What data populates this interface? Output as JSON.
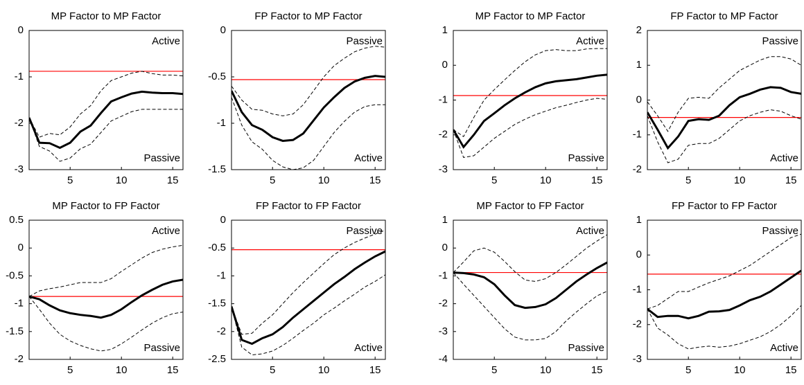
{
  "chart_data": [
    {
      "type": "line",
      "title": "MP Factor to MP Factor",
      "x": [
        1,
        2,
        3,
        4,
        5,
        6,
        7,
        8,
        9,
        10,
        11,
        12,
        13,
        14,
        15,
        16
      ],
      "xlim": [
        1,
        16
      ],
      "xticks": [
        5,
        10,
        15
      ],
      "ylim": [
        -3,
        0
      ],
      "yticks": [
        0,
        -1,
        -2,
        -3
      ],
      "series": [
        {
          "color": "#000000",
          "dashed": false,
          "values": [
            -1.88,
            -2.42,
            -2.43,
            -2.53,
            -2.42,
            -2.18,
            -2.05,
            -1.78,
            -1.53,
            -1.44,
            -1.36,
            -1.32,
            -1.34,
            -1.35,
            -1.35,
            -1.37
          ]
        },
        {
          "color": "#000000",
          "dashed": true,
          "values": [
            -1.88,
            -2.3,
            -2.22,
            -2.25,
            -2.08,
            -1.8,
            -1.62,
            -1.3,
            -1.08,
            -1.0,
            -0.92,
            -0.88,
            -0.93,
            -0.96,
            -0.96,
            -0.98
          ]
        },
        {
          "color": "#000000",
          "dashed": true,
          "values": [
            -1.88,
            -2.5,
            -2.6,
            -2.82,
            -2.75,
            -2.55,
            -2.45,
            -2.2,
            -1.95,
            -1.85,
            -1.75,
            -1.7,
            -1.7,
            -1.7,
            -1.7,
            -1.7
          ]
        }
      ],
      "hline": {
        "value": -0.88,
        "color": "#ff0000"
      },
      "annotations": [
        {
          "text": "Active",
          "position": "top-right"
        },
        {
          "text": "Passive",
          "position": "bottom-right"
        }
      ]
    },
    {
      "type": "line",
      "title": "FP Factor to MP Factor",
      "x": [
        1,
        2,
        3,
        4,
        5,
        6,
        7,
        8,
        9,
        10,
        11,
        12,
        13,
        14,
        15,
        16
      ],
      "xlim": [
        1,
        16
      ],
      "xticks": [
        5,
        10,
        15
      ],
      "ylim": [
        -1.5,
        0
      ],
      "yticks": [
        0,
        -0.5,
        -1,
        -1.5
      ],
      "series": [
        {
          "color": "#000000",
          "dashed": false,
          "values": [
            -0.65,
            -0.88,
            -1.02,
            -1.07,
            -1.15,
            -1.19,
            -1.18,
            -1.11,
            -0.97,
            -0.83,
            -0.72,
            -0.62,
            -0.55,
            -0.51,
            -0.49,
            -0.5
          ]
        },
        {
          "color": "#000000",
          "dashed": true,
          "values": [
            -0.6,
            -0.75,
            -0.85,
            -0.86,
            -0.9,
            -0.92,
            -0.9,
            -0.8,
            -0.65,
            -0.5,
            -0.38,
            -0.3,
            -0.23,
            -0.19,
            -0.17,
            -0.18
          ]
        },
        {
          "color": "#000000",
          "dashed": true,
          "values": [
            -0.72,
            -1.02,
            -1.2,
            -1.28,
            -1.4,
            -1.47,
            -1.5,
            -1.48,
            -1.4,
            -1.25,
            -1.1,
            -0.98,
            -0.88,
            -0.82,
            -0.8,
            -0.8
          ]
        }
      ],
      "hline": {
        "value": -0.53,
        "color": "#ff0000"
      },
      "annotations": [
        {
          "text": "Passive",
          "position": "top-right"
        },
        {
          "text": "Active",
          "position": "bottom-right"
        }
      ]
    },
    {
      "type": "line",
      "title": "MP Factor to MP Factor",
      "x": [
        1,
        2,
        3,
        4,
        5,
        6,
        7,
        8,
        9,
        10,
        11,
        12,
        13,
        14,
        15,
        16
      ],
      "xlim": [
        1,
        16
      ],
      "xticks": [
        5,
        10,
        15
      ],
      "ylim": [
        -3,
        1
      ],
      "yticks": [
        1,
        0,
        -1,
        -2,
        -3
      ],
      "series": [
        {
          "color": "#000000",
          "dashed": false,
          "values": [
            -1.85,
            -2.35,
            -2.0,
            -1.6,
            -1.38,
            -1.15,
            -0.95,
            -0.78,
            -0.63,
            -0.52,
            -0.46,
            -0.43,
            -0.4,
            -0.35,
            -0.3,
            -0.27
          ]
        },
        {
          "color": "#000000",
          "dashed": true,
          "values": [
            -1.85,
            -2.05,
            -1.5,
            -1.0,
            -0.7,
            -0.42,
            -0.15,
            0.1,
            0.3,
            0.42,
            0.45,
            0.42,
            0.42,
            0.47,
            0.48,
            0.48
          ]
        },
        {
          "color": "#000000",
          "dashed": true,
          "values": [
            -1.85,
            -2.65,
            -2.6,
            -2.35,
            -2.1,
            -1.9,
            -1.7,
            -1.55,
            -1.42,
            -1.32,
            -1.22,
            -1.15,
            -1.07,
            -1.0,
            -0.95,
            -0.98
          ]
        }
      ],
      "hline": {
        "value": -0.87,
        "color": "#ff0000"
      },
      "annotations": [
        {
          "text": "Active",
          "position": "top-right"
        },
        {
          "text": "Passive",
          "position": "bottom-right"
        }
      ]
    },
    {
      "type": "line",
      "title": "FP Factor to MP Factor",
      "x": [
        1,
        2,
        3,
        4,
        5,
        6,
        7,
        8,
        9,
        10,
        11,
        12,
        13,
        14,
        15,
        16
      ],
      "xlim": [
        1,
        16
      ],
      "xticks": [
        5,
        10,
        15
      ],
      "ylim": [
        -2,
        2
      ],
      "yticks": [
        2,
        1,
        0,
        -1,
        -2
      ],
      "series": [
        {
          "color": "#000000",
          "dashed": false,
          "values": [
            -0.35,
            -0.85,
            -1.38,
            -1.05,
            -0.6,
            -0.55,
            -0.57,
            -0.45,
            -0.15,
            0.08,
            0.18,
            0.3,
            0.37,
            0.35,
            0.23,
            0.18
          ]
        },
        {
          "color": "#000000",
          "dashed": true,
          "values": [
            -0.05,
            -0.45,
            -0.9,
            -0.35,
            0.05,
            0.08,
            0.05,
            0.35,
            0.6,
            0.85,
            1.0,
            1.15,
            1.25,
            1.25,
            1.18,
            1.0
          ]
        },
        {
          "color": "#000000",
          "dashed": true,
          "values": [
            -0.45,
            -1.2,
            -1.8,
            -1.7,
            -1.3,
            -1.25,
            -1.25,
            -1.1,
            -0.85,
            -0.6,
            -0.45,
            -0.35,
            -0.28,
            -0.32,
            -0.45,
            -0.55
          ]
        }
      ],
      "hline": {
        "value": -0.5,
        "color": "#ff0000"
      },
      "annotations": [
        {
          "text": "Passive",
          "position": "top-right"
        },
        {
          "text": "Active",
          "position": "bottom-right"
        }
      ]
    },
    {
      "type": "line",
      "title": "MP Factor to FP Factor",
      "x": [
        1,
        2,
        3,
        4,
        5,
        6,
        7,
        8,
        9,
        10,
        11,
        12,
        13,
        14,
        15,
        16
      ],
      "xlim": [
        1,
        16
      ],
      "xticks": [
        5,
        10,
        15
      ],
      "ylim": [
        -2,
        0.5
      ],
      "yticks": [
        0.5,
        0,
        -0.5,
        -1,
        -1.5,
        -2
      ],
      "series": [
        {
          "color": "#000000",
          "dashed": false,
          "values": [
            -0.87,
            -0.92,
            -1.03,
            -1.12,
            -1.17,
            -1.2,
            -1.22,
            -1.25,
            -1.2,
            -1.1,
            -0.97,
            -0.85,
            -0.75,
            -0.66,
            -0.6,
            -0.57
          ]
        },
        {
          "color": "#000000",
          "dashed": true,
          "values": [
            -0.87,
            -0.77,
            -0.73,
            -0.7,
            -0.66,
            -0.62,
            -0.62,
            -0.62,
            -0.55,
            -0.42,
            -0.3,
            -0.18,
            -0.08,
            -0.02,
            0.02,
            0.05
          ]
        },
        {
          "color": "#000000",
          "dashed": true,
          "values": [
            -0.87,
            -1.1,
            -1.35,
            -1.55,
            -1.67,
            -1.75,
            -1.81,
            -1.85,
            -1.82,
            -1.72,
            -1.6,
            -1.47,
            -1.35,
            -1.25,
            -1.18,
            -1.15
          ]
        }
      ],
      "hline": {
        "value": -0.87,
        "color": "#ff0000"
      },
      "annotations": [
        {
          "text": "Active",
          "position": "top-right"
        },
        {
          "text": "Passive",
          "position": "bottom-right"
        }
      ]
    },
    {
      "type": "line",
      "title": "FP Factor to FP Factor",
      "x": [
        1,
        2,
        3,
        4,
        5,
        6,
        7,
        8,
        9,
        10,
        11,
        12,
        13,
        14,
        15,
        16
      ],
      "xlim": [
        1,
        16
      ],
      "xticks": [
        5,
        10,
        15
      ],
      "ylim": [
        -2.5,
        0
      ],
      "yticks": [
        0,
        -0.5,
        -1,
        -1.5,
        -2,
        -2.5
      ],
      "series": [
        {
          "color": "#000000",
          "dashed": false,
          "values": [
            -1.55,
            -2.15,
            -2.22,
            -2.12,
            -2.05,
            -1.92,
            -1.75,
            -1.6,
            -1.45,
            -1.3,
            -1.15,
            -1.02,
            -0.88,
            -0.76,
            -0.65,
            -0.56
          ]
        },
        {
          "color": "#000000",
          "dashed": true,
          "values": [
            -1.55,
            -2.05,
            -2.03,
            -1.85,
            -1.7,
            -1.5,
            -1.3,
            -1.12,
            -0.95,
            -0.78,
            -0.62,
            -0.5,
            -0.4,
            -0.32,
            -0.25,
            -0.18
          ]
        },
        {
          "color": "#000000",
          "dashed": true,
          "values": [
            -1.55,
            -2.28,
            -2.42,
            -2.4,
            -2.35,
            -2.25,
            -2.12,
            -1.98,
            -1.85,
            -1.7,
            -1.58,
            -1.45,
            -1.33,
            -1.2,
            -1.1,
            -0.98
          ]
        }
      ],
      "hline": {
        "value": -0.53,
        "color": "#ff0000"
      },
      "annotations": [
        {
          "text": "Passive",
          "position": "top-right"
        },
        {
          "text": "Active",
          "position": "bottom-right"
        }
      ]
    },
    {
      "type": "line",
      "title": "MP Factor to FP Factor",
      "x": [
        1,
        2,
        3,
        4,
        5,
        6,
        7,
        8,
        9,
        10,
        11,
        12,
        13,
        14,
        15,
        16
      ],
      "xlim": [
        1,
        16
      ],
      "xticks": [
        5,
        10,
        15
      ],
      "ylim": [
        -4,
        1
      ],
      "yticks": [
        1,
        0,
        -1,
        -2,
        -3,
        -4
      ],
      "series": [
        {
          "color": "#000000",
          "dashed": false,
          "values": [
            -0.88,
            -0.9,
            -0.95,
            -1.05,
            -1.3,
            -1.7,
            -2.05,
            -2.15,
            -2.12,
            -2.02,
            -1.8,
            -1.5,
            -1.2,
            -0.95,
            -0.72,
            -0.52
          ]
        },
        {
          "color": "#000000",
          "dashed": true,
          "values": [
            -0.88,
            -0.5,
            -0.1,
            0.0,
            -0.15,
            -0.48,
            -0.85,
            -1.15,
            -1.2,
            -1.1,
            -0.88,
            -0.6,
            -0.3,
            0.0,
            0.25,
            0.48
          ]
        },
        {
          "color": "#000000",
          "dashed": true,
          "values": [
            -0.88,
            -1.3,
            -1.7,
            -2.1,
            -2.5,
            -2.9,
            -3.2,
            -3.3,
            -3.3,
            -3.25,
            -3.0,
            -2.62,
            -2.3,
            -2.0,
            -1.72,
            -1.55
          ]
        }
      ],
      "hline": {
        "value": -0.88,
        "color": "#ff0000"
      },
      "annotations": [
        {
          "text": "Active",
          "position": "top-right"
        },
        {
          "text": "Passive",
          "position": "bottom-right"
        }
      ]
    },
    {
      "type": "line",
      "title": "FP Factor to FP Factor",
      "x": [
        1,
        2,
        3,
        4,
        5,
        6,
        7,
        8,
        9,
        10,
        11,
        12,
        13,
        14,
        15,
        16
      ],
      "xlim": [
        1,
        16
      ],
      "xticks": [
        5,
        10,
        15
      ],
      "ylim": [
        -3,
        1
      ],
      "yticks": [
        1,
        0,
        -1,
        -2,
        -3
      ],
      "series": [
        {
          "color": "#000000",
          "dashed": false,
          "values": [
            -1.55,
            -1.78,
            -1.75,
            -1.75,
            -1.82,
            -1.75,
            -1.63,
            -1.62,
            -1.58,
            -1.45,
            -1.3,
            -1.2,
            -1.05,
            -0.85,
            -0.65,
            -0.45
          ]
        },
        {
          "color": "#000000",
          "dashed": true,
          "values": [
            -1.55,
            -1.45,
            -1.25,
            -1.05,
            -1.05,
            -0.92,
            -0.8,
            -0.7,
            -0.6,
            -0.45,
            -0.3,
            -0.1,
            0.1,
            0.3,
            0.5,
            0.6
          ]
        },
        {
          "color": "#000000",
          "dashed": true,
          "values": [
            -1.55,
            -2.1,
            -2.3,
            -2.55,
            -2.7,
            -2.65,
            -2.62,
            -2.65,
            -2.62,
            -2.55,
            -2.45,
            -2.35,
            -2.2,
            -2.0,
            -1.75,
            -1.45
          ]
        }
      ],
      "hline": {
        "value": -0.55,
        "color": "#ff0000"
      },
      "annotations": [
        {
          "text": "Passive",
          "position": "top-right"
        },
        {
          "text": "Active",
          "position": "bottom-right"
        }
      ]
    }
  ]
}
